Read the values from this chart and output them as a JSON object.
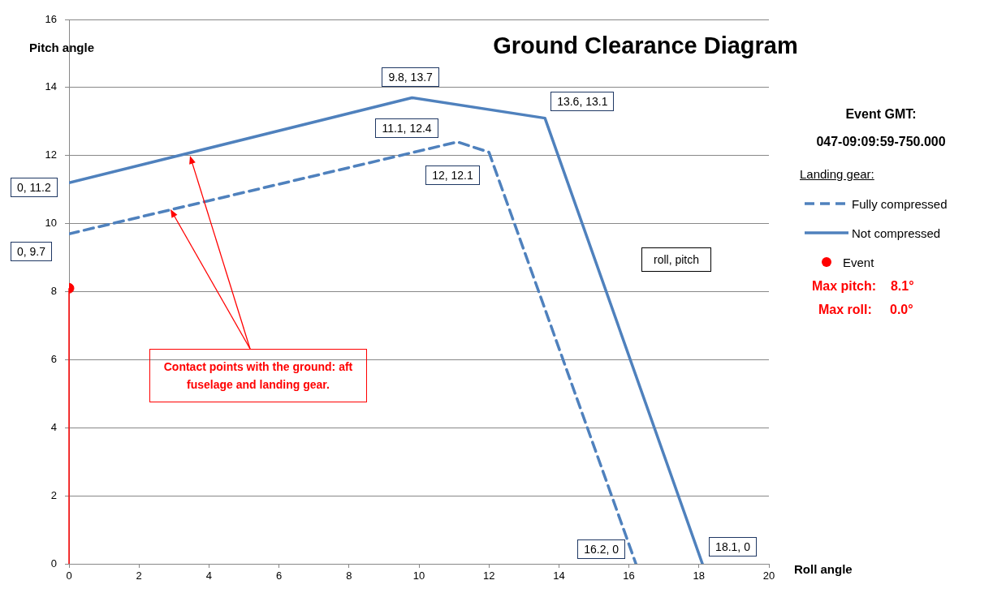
{
  "chart_data": {
    "type": "line",
    "title": "Ground Clearance Diagram",
    "xlabel": "Roll angle",
    "ylabel": "Pitch angle",
    "legend_title": "Landing gear:",
    "xlim": [
      0,
      20
    ],
    "xticks": [
      0,
      2,
      4,
      6,
      8,
      10,
      12,
      14,
      16,
      18,
      20
    ],
    "ylim": [
      0,
      16
    ],
    "yticks": [
      0,
      2,
      4,
      6,
      8,
      10,
      12,
      14,
      16
    ],
    "grid": "y",
    "legend": "right",
    "marker": "none",
    "series": [
      {
        "name": "Fully compressed",
        "line_style": "dashed",
        "color": "#4f81bd",
        "x": [
          0,
          11.1,
          12,
          16.2
        ],
        "values": [
          9.7,
          12.4,
          12.1,
          0
        ]
      },
      {
        "name": "Not compressed",
        "line_style": "solid",
        "color": "#4f81bd",
        "x": [
          0,
          9.8,
          13.6,
          18.1
        ],
        "values": [
          11.2,
          13.7,
          13.1,
          0
        ]
      },
      {
        "name": "Event",
        "type": "lollipop",
        "marker": "circle",
        "color": "#ff0000",
        "x": [
          0
        ],
        "values": [
          8.1
        ]
      }
    ],
    "annotations": [
      {
        "text": "0, 11.2",
        "x": 0,
        "y": 11.2
      },
      {
        "text": "9.8, 13.7",
        "x": 9.8,
        "y": 13.7
      },
      {
        "text": "13.6, 13.1",
        "x": 13.6,
        "y": 13.1
      },
      {
        "text": "11.1, 12.4",
        "x": 11.1,
        "y": 12.4
      },
      {
        "text": "12, 12.1",
        "x": 12,
        "y": 12.1
      },
      {
        "text": "0, 9.7",
        "x": 0,
        "y": 9.7
      },
      {
        "text": "16.2, 0",
        "x": 16.2,
        "y": 0
      },
      {
        "text": "18.1, 0",
        "x": 18.1,
        "y": 0
      },
      "roll, pitch",
      "Event GMT:",
      "047-09:09:59-750.000",
      "Max pitch:    8.1°",
      "Max roll:     0.0°",
      "Contact points  with the ground: aft fuselage and landing gear."
    ]
  }
}
